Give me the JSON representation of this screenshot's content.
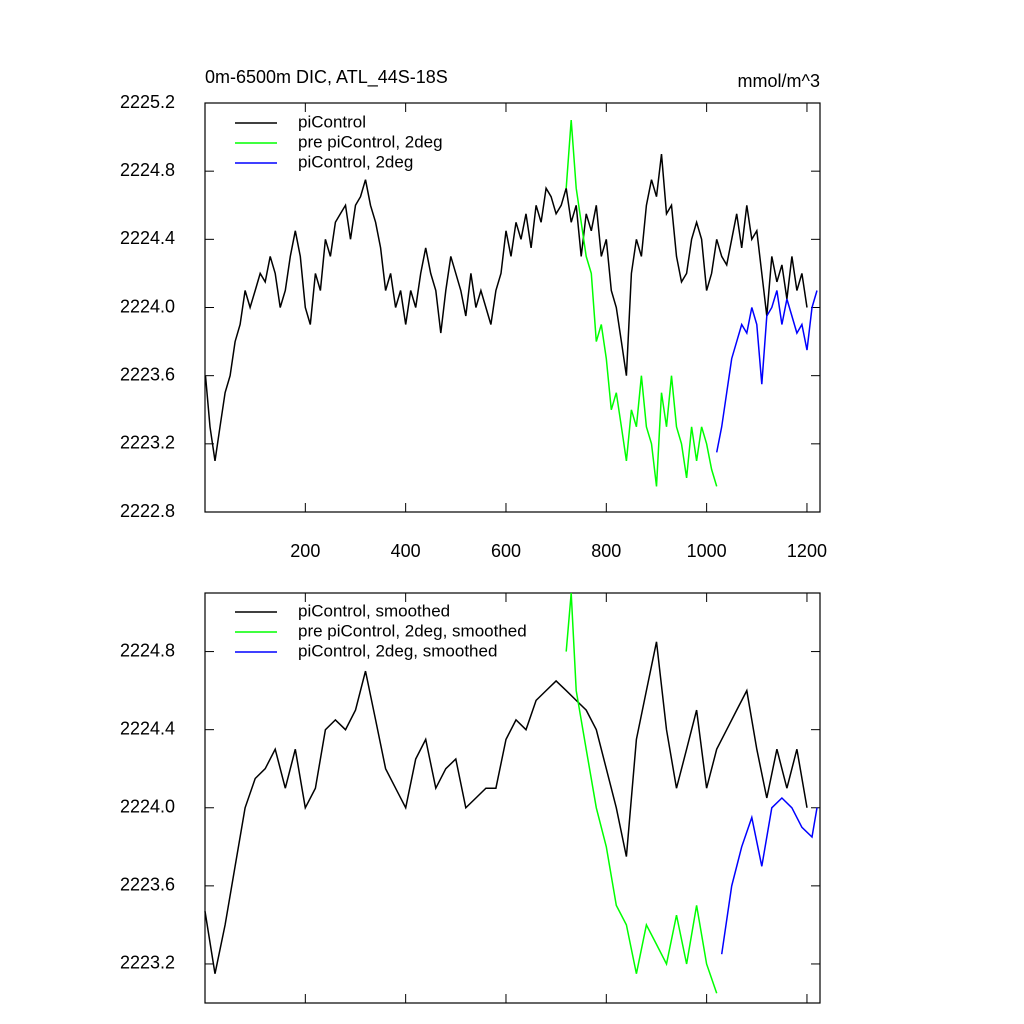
{
  "chart_data": [
    {
      "type": "line",
      "title": "0m-6500m DIC, ATL_44S-18S",
      "units": "mmol/m^3",
      "xlim": [
        0,
        1226
      ],
      "xticks": [
        200,
        400,
        600,
        800,
        1000,
        1200
      ],
      "xtick_labels": true,
      "ylim": [
        2222.8,
        2225.2
      ],
      "yticks": [
        2222.8,
        2223.2,
        2223.6,
        {
          "value": 2224,
          "label": "2224.0"
        },
        2224.4,
        2224.8,
        2225.2
      ],
      "series": [
        {
          "name": "piControl",
          "color": "#000000",
          "x": [
            1,
            10,
            20,
            30,
            40,
            50,
            60,
            70,
            80,
            90,
            100,
            110,
            120,
            130,
            140,
            150,
            160,
            170,
            180,
            190,
            200,
            210,
            220,
            230,
            240,
            250,
            260,
            270,
            280,
            290,
            300,
            310,
            320,
            330,
            340,
            350,
            360,
            370,
            380,
            390,
            400,
            410,
            420,
            430,
            440,
            450,
            460,
            470,
            480,
            490,
            500,
            510,
            520,
            530,
            540,
            550,
            560,
            570,
            580,
            590,
            600,
            610,
            620,
            630,
            640,
            650,
            660,
            670,
            680,
            690,
            700,
            710,
            720,
            730,
            740,
            750,
            760,
            770,
            780,
            790,
            800,
            810,
            820,
            830,
            840,
            850,
            860,
            870,
            880,
            890,
            900,
            910,
            920,
            930,
            940,
            950,
            960,
            970,
            980,
            990,
            1000,
            1010,
            1020,
            1030,
            1040,
            1050,
            1060,
            1070,
            1080,
            1090,
            1100,
            1110,
            1120,
            1130,
            1140,
            1150,
            1160,
            1170,
            1180,
            1190,
            1200
          ],
          "values": [
            2223.6,
            2223.3,
            2223.1,
            2223.3,
            2223.5,
            2223.6,
            2223.8,
            2223.9,
            2224.1,
            2224.0,
            2224.1,
            2224.2,
            2224.15,
            2224.3,
            2224.2,
            2224.0,
            2224.1,
            2224.3,
            2224.45,
            2224.3,
            2224.0,
            2223.9,
            2224.2,
            2224.1,
            2224.4,
            2224.3,
            2224.5,
            2224.55,
            2224.6,
            2224.4,
            2224.6,
            2224.65,
            2224.75,
            2224.6,
            2224.5,
            2224.35,
            2224.1,
            2224.2,
            2224.0,
            2224.1,
            2223.9,
            2224.1,
            2224.0,
            2224.2,
            2224.35,
            2224.2,
            2224.1,
            2223.85,
            2224.1,
            2224.3,
            2224.2,
            2224.1,
            2223.95,
            2224.2,
            2224.0,
            2224.1,
            2224.0,
            2223.9,
            2224.1,
            2224.2,
            2224.45,
            2224.3,
            2224.5,
            2224.4,
            2224.55,
            2224.35,
            2224.6,
            2224.5,
            2224.7,
            2224.65,
            2224.55,
            2224.6,
            2224.7,
            2224.5,
            2224.6,
            2224.3,
            2224.55,
            2224.45,
            2224.6,
            2224.3,
            2224.4,
            2224.1,
            2224.0,
            2223.8,
            2223.6,
            2224.2,
            2224.4,
            2224.3,
            2224.6,
            2224.75,
            2224.65,
            2224.9,
            2224.55,
            2224.6,
            2224.3,
            2224.15,
            2224.2,
            2224.4,
            2224.5,
            2224.4,
            2224.1,
            2224.2,
            2224.4,
            2224.3,
            2224.25,
            2224.4,
            2224.55,
            2224.35,
            2224.6,
            2224.4,
            2224.45,
            2224.2,
            2223.95,
            2224.3,
            2224.15,
            2224.25,
            2224.05,
            2224.3,
            2224.1,
            2224.2,
            2224.0
          ]
        },
        {
          "name": "pre piControl, 2deg",
          "color": "#00ff00",
          "x": [
            720,
            730,
            740,
            750,
            760,
            770,
            780,
            790,
            800,
            810,
            820,
            830,
            840,
            850,
            860,
            870,
            880,
            890,
            900,
            910,
            920,
            930,
            940,
            950,
            960,
            970,
            980,
            990,
            1000,
            1010,
            1020
          ],
          "values": [
            2224.7,
            2225.1,
            2224.7,
            2224.5,
            2224.3,
            2224.2,
            2223.8,
            2223.9,
            2223.7,
            2223.4,
            2223.5,
            2223.3,
            2223.1,
            2223.4,
            2223.3,
            2223.6,
            2223.3,
            2223.2,
            2222.95,
            2223.5,
            2223.3,
            2223.6,
            2223.3,
            2223.2,
            2223.0,
            2223.3,
            2223.1,
            2223.3,
            2223.2,
            2223.05,
            2222.95
          ]
        },
        {
          "name": "piControl, 2deg",
          "color": "#0000ff",
          "x": [
            1020,
            1030,
            1040,
            1050,
            1060,
            1070,
            1080,
            1090,
            1100,
            1110,
            1120,
            1130,
            1140,
            1150,
            1160,
            1170,
            1180,
            1190,
            1200,
            1210,
            1220
          ],
          "values": [
            2223.15,
            2223.3,
            2223.5,
            2223.7,
            2223.8,
            2223.9,
            2223.85,
            2224.0,
            2223.9,
            2223.55,
            2223.95,
            2224.0,
            2224.1,
            2223.9,
            2224.05,
            2223.95,
            2223.85,
            2223.9,
            2223.75,
            2224.0,
            2224.1
          ]
        }
      ]
    },
    {
      "type": "line",
      "xlim": [
        0,
        1226
      ],
      "xticks": [
        200,
        400,
        600,
        800,
        1000,
        1200
      ],
      "xtick_labels": false,
      "ylim": [
        2223.0,
        2225.1
      ],
      "yticks": [
        2223.2,
        2223.6,
        {
          "value": 2224,
          "label": "2224.0"
        },
        2224.4,
        2224.8
      ],
      "series": [
        {
          "name": "piControl, smoothed",
          "color": "#000000",
          "x": [
            0,
            20,
            40,
            60,
            80,
            100,
            120,
            140,
            160,
            180,
            200,
            220,
            240,
            260,
            280,
            300,
            320,
            340,
            360,
            380,
            400,
            420,
            440,
            460,
            480,
            500,
            520,
            540,
            560,
            580,
            600,
            620,
            640,
            660,
            680,
            700,
            720,
            740,
            760,
            780,
            800,
            820,
            840,
            860,
            880,
            900,
            920,
            940,
            960,
            980,
            1000,
            1020,
            1040,
            1060,
            1080,
            1100,
            1120,
            1140,
            1160,
            1180,
            1200
          ],
          "values": [
            2223.47,
            2223.15,
            2223.4,
            2223.7,
            2224.0,
            2224.15,
            2224.2,
            2224.3,
            2224.1,
            2224.3,
            2224.0,
            2224.1,
            2224.4,
            2224.45,
            2224.4,
            2224.5,
            2224.7,
            2224.45,
            2224.2,
            2224.1,
            2224.0,
            2224.25,
            2224.35,
            2224.1,
            2224.2,
            2224.25,
            2224.0,
            2224.05,
            2224.1,
            2224.1,
            2224.35,
            2224.45,
            2224.4,
            2224.55,
            2224.6,
            2224.65,
            2224.6,
            2224.55,
            2224.5,
            2224.4,
            2224.2,
            2224.0,
            2223.75,
            2224.35,
            2224.6,
            2224.85,
            2224.4,
            2224.1,
            2224.3,
            2224.5,
            2224.1,
            2224.3,
            2224.4,
            2224.5,
            2224.6,
            2224.3,
            2224.05,
            2224.3,
            2224.1,
            2224.3,
            2224.0
          ]
        },
        {
          "name": "pre piControl, 2deg, smoothed",
          "color": "#00ff00",
          "x": [
            720,
            730,
            740,
            760,
            780,
            800,
            820,
            840,
            860,
            880,
            900,
            920,
            940,
            960,
            980,
            1000,
            1020
          ],
          "values": [
            2224.8,
            2225.1,
            2224.6,
            2224.3,
            2224.0,
            2223.8,
            2223.5,
            2223.4,
            2223.15,
            2223.4,
            2223.3,
            2223.2,
            2223.45,
            2223.2,
            2223.5,
            2223.2,
            2223.05
          ]
        },
        {
          "name": "piControl, 2deg, smoothed",
          "color": "#0000ff",
          "x": [
            1030,
            1050,
            1070,
            1090,
            1110,
            1130,
            1150,
            1170,
            1190,
            1210,
            1220
          ],
          "values": [
            2223.25,
            2223.6,
            2223.8,
            2223.95,
            2223.7,
            2224.0,
            2224.05,
            2224.0,
            2223.9,
            2223.85,
            2224.0
          ]
        }
      ]
    }
  ]
}
